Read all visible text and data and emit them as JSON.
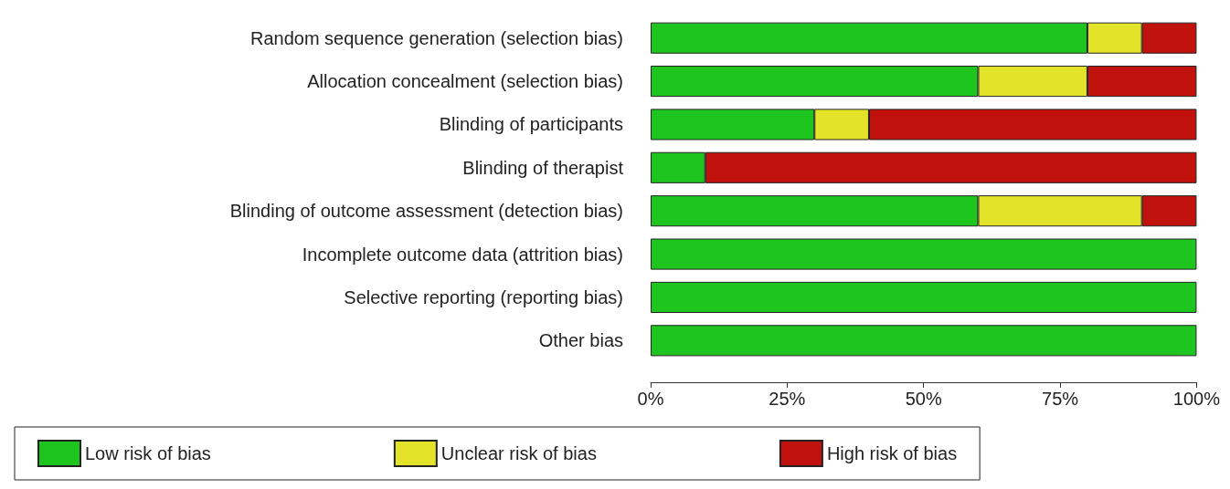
{
  "chart_data": {
    "type": "bar",
    "orientation": "horizontal",
    "stacked": true,
    "categories": [
      "Random sequence generation (selection bias)",
      "Allocation concealment (selection bias)",
      "Blinding of participants",
      "Blinding of therapist",
      "Blinding of outcome assessment (detection bias)",
      "Incomplete outcome data (attrition bias)",
      "Selective reporting (reporting bias)",
      "Other bias"
    ],
    "series": [
      {
        "name": "Low risk of bias",
        "color": "#1ec51e",
        "values": [
          80,
          60,
          30,
          10,
          60,
          100,
          100,
          100
        ]
      },
      {
        "name": "Unclear risk of bias",
        "color": "#e3e32a",
        "values": [
          10,
          20,
          10,
          0,
          30,
          0,
          0,
          0
        ]
      },
      {
        "name": "High risk of bias",
        "color": "#c0110c",
        "values": [
          10,
          20,
          60,
          90,
          10,
          0,
          0,
          0
        ]
      }
    ],
    "xlim": [
      0,
      100
    ],
    "xticks": [
      {
        "value": 0,
        "label": "0%"
      },
      {
        "value": 25,
        "label": "25%"
      },
      {
        "value": 50,
        "label": "50%"
      },
      {
        "value": 75,
        "label": "75%"
      },
      {
        "value": 100,
        "label": "100%"
      }
    ],
    "grid": false,
    "legend": "bottom"
  }
}
